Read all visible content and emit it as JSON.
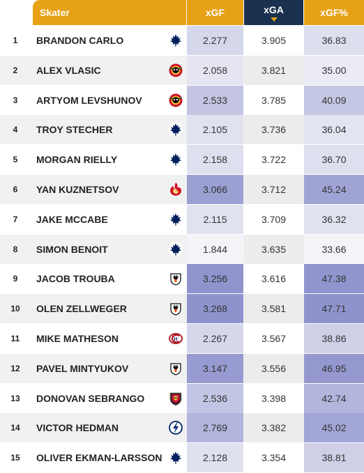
{
  "header": {
    "skater": "Skater",
    "xgf": "xGF",
    "xga": "xGA",
    "xgf_pct": "xGF%"
  },
  "rows": [
    {
      "rank": "1",
      "name": "BRANDON CARLO",
      "team_icon": "maple-leaf-icon",
      "xgf": "2.277",
      "xga": "3.905",
      "xgf_pct": "36.83"
    },
    {
      "rank": "2",
      "name": "ALEX VLASIC",
      "team_icon": "blackhawks-icon",
      "xgf": "2.058",
      "xga": "3.821",
      "xgf_pct": "35.00"
    },
    {
      "rank": "3",
      "name": "ARTYOM LEVSHUNOV",
      "team_icon": "blackhawks-icon",
      "xgf": "2.533",
      "xga": "3.785",
      "xgf_pct": "40.09"
    },
    {
      "rank": "4",
      "name": "TROY STECHER",
      "team_icon": "maple-leaf-icon",
      "xgf": "2.105",
      "xga": "3.736",
      "xgf_pct": "36.04"
    },
    {
      "rank": "5",
      "name": "MORGAN RIELLY",
      "team_icon": "maple-leaf-icon",
      "xgf": "2.158",
      "xga": "3.722",
      "xgf_pct": "36.70"
    },
    {
      "rank": "6",
      "name": "YAN KUZNETSOV",
      "team_icon": "flames-icon",
      "xgf": "3.066",
      "xga": "3.712",
      "xgf_pct": "45.24"
    },
    {
      "rank": "7",
      "name": "JAKE MCCABE",
      "team_icon": "maple-leaf-icon",
      "xgf": "2.115",
      "xga": "3.709",
      "xgf_pct": "36.32"
    },
    {
      "rank": "8",
      "name": "SIMON BENOIT",
      "team_icon": "maple-leaf-icon",
      "xgf": "1.844",
      "xga": "3.635",
      "xgf_pct": "33.66"
    },
    {
      "rank": "9",
      "name": "JACOB TROUBA",
      "team_icon": "ducks-icon",
      "xgf": "3.256",
      "xga": "3.616",
      "xgf_pct": "47.38"
    },
    {
      "rank": "10",
      "name": "OLEN ZELLWEGER",
      "team_icon": "ducks-icon",
      "xgf": "3.268",
      "xga": "3.581",
      "xgf_pct": "47.71"
    },
    {
      "rank": "11",
      "name": "MIKE MATHESON",
      "team_icon": "canadiens-icon",
      "xgf": "2.267",
      "xga": "3.567",
      "xgf_pct": "38.86"
    },
    {
      "rank": "12",
      "name": "PAVEL MINTYUKOV",
      "team_icon": "ducks-icon",
      "xgf": "3.147",
      "xga": "3.556",
      "xgf_pct": "46.95"
    },
    {
      "rank": "13",
      "name": "DONOVAN SEBRANGO",
      "team_icon": "panthers-icon",
      "xgf": "2.536",
      "xga": "3.398",
      "xgf_pct": "42.74"
    },
    {
      "rank": "14",
      "name": "VICTOR HEDMAN",
      "team_icon": "lightning-icon",
      "xgf": "2.769",
      "xga": "3.382",
      "xgf_pct": "45.02"
    },
    {
      "rank": "15",
      "name": "OLIVER EKMAN-LARSSON",
      "team_icon": "maple-leaf-icon",
      "xgf": "2.128",
      "xga": "3.354",
      "xgf_pct": "38.81"
    }
  ],
  "colors": {
    "header_accent": "#e6a117",
    "header_sorted": "#1a3150",
    "heat_base": "#f4f4f8",
    "heat_strong": "#8e93cd"
  }
}
